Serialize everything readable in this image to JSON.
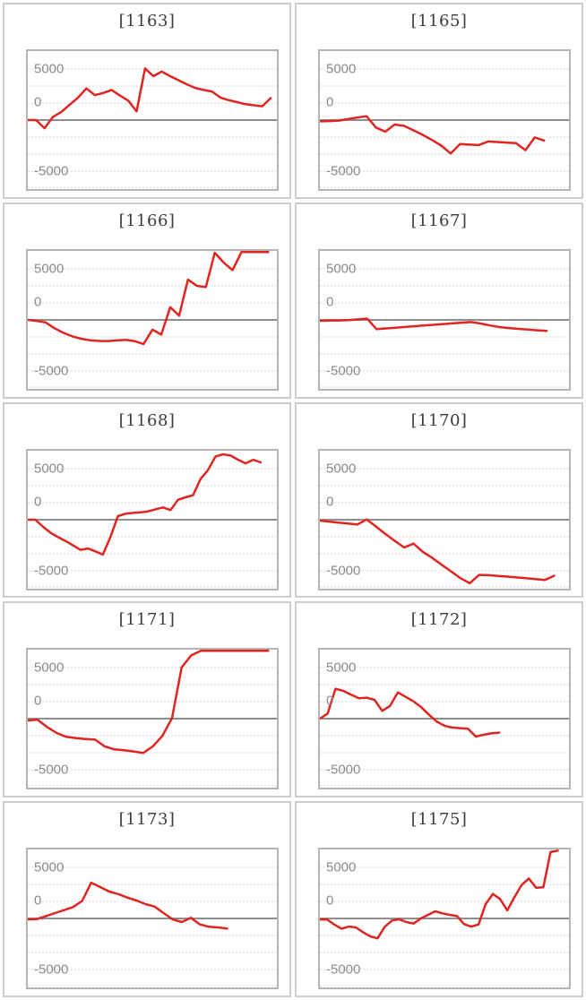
{
  "style": {
    "line_color": "#e02420",
    "zero_line_color": "#8e8e8e",
    "gridline_color": "#d9d9d9",
    "plot_border_color": "#b4b4b4",
    "cell_border_color": "#cdcdcd",
    "tick_label_color": "#8a8a8a",
    "title_color": "#3b3b3b",
    "background": "#ffffff"
  },
  "axis": {
    "tick_labels": [
      "5000",
      "0",
      "-5000"
    ],
    "tick_values": [
      5000,
      0,
      -5000
    ]
  },
  "chart_data": [
    {
      "type": "line",
      "title": "[1163]",
      "y_ticks": [
        5000,
        0,
        -5000
      ],
      "ylim": [
        -6750,
        6750
      ],
      "grid": true,
      "end_frac": 0.975,
      "values": [
        0,
        0,
        -800,
        300,
        800,
        1500,
        2200,
        3100,
        2450,
        2650,
        2950,
        2400,
        1900,
        850,
        5050,
        4300,
        4750,
        4300,
        3900,
        3500,
        3150,
        2950,
        2800,
        2200,
        1950,
        1750,
        1550,
        1450,
        1350,
        2150
      ]
    },
    {
      "type": "line",
      "title": "[1165]",
      "y_ticks": [
        5000,
        0,
        -5000
      ],
      "ylim": [
        -6750,
        6750
      ],
      "grid": true,
      "end_frac": 0.9,
      "values": [
        -120,
        -100,
        -50,
        100,
        250,
        380,
        -730,
        -1140,
        -440,
        -560,
        -1000,
        -1450,
        -1950,
        -2500,
        -3270,
        -2350,
        -2400,
        -2450,
        -2100,
        -2150,
        -2200,
        -2250,
        -2950,
        -1700,
        -2000
      ]
    },
    {
      "type": "line",
      "title": "[1166]",
      "y_ticks": [
        5000,
        0,
        -5000
      ],
      "ylim": [
        -6750,
        6750
      ],
      "grid": true,
      "end_frac": 0.965,
      "values": [
        0,
        -100,
        -250,
        -820,
        -1260,
        -1610,
        -1840,
        -2000,
        -2060,
        -2070,
        -2010,
        -1960,
        -2080,
        -2370,
        -960,
        -1440,
        1250,
        420,
        3940,
        3330,
        3210,
        6570,
        5610,
        4880,
        6690,
        6800,
        6800,
        6800
      ]
    },
    {
      "type": "line",
      "title": "[1167]",
      "y_ticks": [
        5000,
        0,
        -5000
      ],
      "ylim": [
        -6750,
        6750
      ],
      "grid": true,
      "end_frac": 0.91,
      "values": [
        -90,
        -70,
        -50,
        -30,
        40,
        120,
        -900,
        -830,
        -760,
        -690,
        -620,
        -550,
        -480,
        -410,
        -340,
        -270,
        -210,
        -350,
        -540,
        -700,
        -800,
        -880,
        -950,
        -1020,
        -1080
      ]
    },
    {
      "type": "line",
      "title": "[1168]",
      "y_ticks": [
        5000,
        0,
        -5000
      ],
      "ylim": [
        -6750,
        6750
      ],
      "grid": true,
      "end_frac": 0.935,
      "values": [
        0,
        0,
        -670,
        -1260,
        -1690,
        -2070,
        -2500,
        -2950,
        -2820,
        -3100,
        -3420,
        -1700,
        350,
        590,
        670,
        730,
        820,
        1020,
        1200,
        940,
        1960,
        2190,
        2400,
        4000,
        4880,
        6190,
        6400,
        6280,
        5870,
        5520,
        5870,
        5610
      ]
    },
    {
      "type": "line",
      "title": "[1170]",
      "y_ticks": [
        5000,
        0,
        -5000
      ],
      "ylim": [
        -6750,
        6750
      ],
      "grid": true,
      "end_frac": 0.94,
      "values": [
        -90,
        -180,
        -280,
        -380,
        -470,
        30,
        -670,
        -1400,
        -2070,
        -2720,
        -2340,
        -3150,
        -3740,
        -4410,
        -5050,
        -5720,
        -6220,
        -5400,
        -5430,
        -5500,
        -5570,
        -5650,
        -5730,
        -5820,
        -5900,
        -5490
      ]
    },
    {
      "type": "line",
      "title": "[1171]",
      "y_ticks": [
        5000,
        0,
        -5000
      ],
      "ylim": [
        -6750,
        6750
      ],
      "grid": true,
      "end_frac": 0.965,
      "values": [
        -180,
        -100,
        -820,
        -1400,
        -1780,
        -1900,
        -1990,
        -2050,
        -2720,
        -3010,
        -3100,
        -3210,
        -3360,
        -2720,
        -1690,
        60,
        5020,
        6190,
        6800,
        6800,
        6800,
        6800,
        6800,
        6800,
        6800,
        6800
      ]
    },
    {
      "type": "line",
      "title": "[1172]",
      "y_ticks": [
        5000,
        0,
        -5000
      ],
      "ylim": [
        -6750,
        6750
      ],
      "grid": true,
      "end_frac": 0.72,
      "values": [
        0,
        500,
        2920,
        2720,
        2340,
        1990,
        2050,
        1840,
        760,
        1250,
        2570,
        2130,
        1700,
        1110,
        380,
        -290,
        -700,
        -880,
        -930,
        -990,
        -1750,
        -1580,
        -1440,
        -1370
      ]
    },
    {
      "type": "line",
      "title": "[1173]",
      "y_ticks": [
        5000,
        0,
        -5000
      ],
      "ylim": [
        -6750,
        6750
      ],
      "grid": true,
      "end_frac": 0.8,
      "values": [
        -90,
        -60,
        230,
        530,
        820,
        1110,
        1720,
        3500,
        3070,
        2630,
        2390,
        2040,
        1750,
        1400,
        1170,
        530,
        -90,
        -350,
        60,
        -580,
        -820,
        -880,
        -990
      ]
    },
    {
      "type": "line",
      "title": "[1175]",
      "y_ticks": [
        5000,
        0,
        -5000
      ],
      "ylim": [
        -6750,
        6750
      ],
      "grid": true,
      "end_frac": 0.955,
      "values": [
        -100,
        -100,
        -600,
        -1000,
        -800,
        -880,
        -1350,
        -1750,
        -1950,
        -820,
        -200,
        -80,
        -350,
        -500,
        0,
        350,
        700,
        500,
        350,
        250,
        -550,
        -800,
        -600,
        1400,
        2400,
        1900,
        800,
        2100,
        3300,
        3900,
        3000,
        3050,
        6500,
        6800
      ]
    }
  ]
}
